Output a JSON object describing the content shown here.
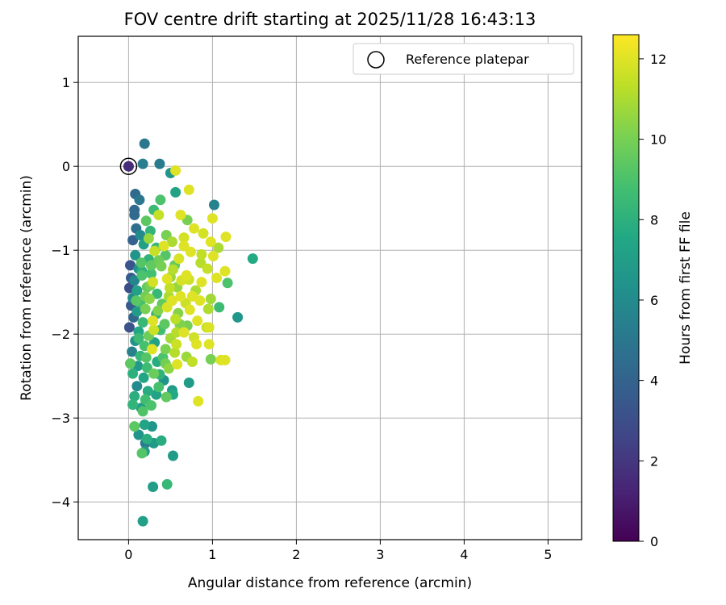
{
  "chart_data": {
    "type": "scatter",
    "title": "FOV centre drift starting at 2025/11/28 16:43:13",
    "xlabel": "Angular distance from reference (arcmin)",
    "ylabel": "Rotation from reference (arcmin)",
    "xlim": [
      -0.6,
      5.4
    ],
    "ylim": [
      -4.45,
      1.55
    ],
    "xticks": [
      0,
      1,
      2,
      3,
      4,
      5
    ],
    "xtick_labels": [
      "0",
      "1",
      "2",
      "3",
      "4",
      "5"
    ],
    "yticks": [
      1,
      0,
      -1,
      -2,
      -3,
      -4
    ],
    "ytick_labels": [
      "1",
      "0",
      "−1",
      "−2",
      "−3",
      "−4"
    ],
    "grid": true,
    "colorbar": {
      "label": "Hours from first FF file",
      "range": [
        0,
        12.6
      ],
      "ticks": [
        0,
        2,
        4,
        6,
        8,
        10,
        12
      ],
      "tick_labels": [
        "0",
        "2",
        "4",
        "6",
        "8",
        "10",
        "12"
      ],
      "colormap": "viridis"
    },
    "legend": {
      "position": "upper-right",
      "entries": [
        "Reference platepar"
      ]
    },
    "reference_point": {
      "x": 0,
      "y": 0,
      "hours": 1.6
    },
    "points": [
      [
        0.0,
        0.0,
        1.6
      ],
      [
        0.19,
        0.27,
        5.0
      ],
      [
        0.17,
        0.03,
        5.3
      ],
      [
        0.37,
        0.03,
        5.2
      ],
      [
        0.5,
        -0.08,
        6.6
      ],
      [
        0.56,
        -0.05,
        12.0
      ],
      [
        0.08,
        -0.33,
        4.4
      ],
      [
        0.13,
        -0.4,
        5.0
      ],
      [
        0.38,
        -0.4,
        9.0
      ],
      [
        0.56,
        -0.31,
        7.3
      ],
      [
        0.72,
        -0.28,
        12.0
      ],
      [
        1.02,
        -0.46,
        5.6
      ],
      [
        0.07,
        -0.52,
        4.3
      ],
      [
        0.07,
        -0.58,
        4.4
      ],
      [
        0.3,
        -0.52,
        8.5
      ],
      [
        0.21,
        -0.65,
        9.4
      ],
      [
        0.36,
        -0.58,
        11.5
      ],
      [
        0.62,
        -0.58,
        12.0
      ],
      [
        0.7,
        -0.64,
        10.0
      ],
      [
        1.0,
        -0.62,
        12.0
      ],
      [
        0.09,
        -0.74,
        4.6
      ],
      [
        0.14,
        -0.82,
        6.0
      ],
      [
        0.26,
        -0.77,
        8.2
      ],
      [
        0.45,
        -0.82,
        10.0
      ],
      [
        0.78,
        -0.74,
        12.0
      ],
      [
        0.89,
        -0.8,
        11.8
      ],
      [
        1.16,
        -0.84,
        12.0
      ],
      [
        0.05,
        -0.88,
        3.9
      ],
      [
        0.18,
        -0.93,
        7.1
      ],
      [
        0.33,
        -0.97,
        8.5
      ],
      [
        0.52,
        -0.9,
        11.0
      ],
      [
        0.66,
        -0.95,
        12.0
      ],
      [
        0.98,
        -0.9,
        12.0
      ],
      [
        1.07,
        -0.97,
        11.0
      ],
      [
        0.08,
        -1.06,
        6.5
      ],
      [
        0.24,
        -1.11,
        8.1
      ],
      [
        0.31,
        -1.01,
        11.5
      ],
      [
        0.44,
        -1.06,
        9.2
      ],
      [
        0.6,
        -1.1,
        11.9
      ],
      [
        0.74,
        -1.02,
        12.0
      ],
      [
        0.86,
        -1.15,
        11.2
      ],
      [
        1.01,
        -1.07,
        12.0
      ],
      [
        1.48,
        -1.1,
        7.6
      ],
      [
        0.02,
        -1.18,
        3.3
      ],
      [
        0.12,
        -1.22,
        6.3
      ],
      [
        0.27,
        -1.28,
        8.8
      ],
      [
        0.39,
        -1.19,
        10.0
      ],
      [
        0.53,
        -1.23,
        11.2
      ],
      [
        0.69,
        -1.3,
        12.0
      ],
      [
        0.94,
        -1.22,
        11.5
      ],
      [
        1.15,
        -1.25,
        12.0
      ],
      [
        0.03,
        -1.33,
        3.5
      ],
      [
        0.07,
        -1.36,
        5.7
      ],
      [
        0.16,
        -1.3,
        9.0
      ],
      [
        0.29,
        -1.38,
        11.8
      ],
      [
        0.46,
        -1.34,
        12.0
      ],
      [
        0.58,
        -1.44,
        10.6
      ],
      [
        0.72,
        -1.35,
        11.7
      ],
      [
        0.87,
        -1.38,
        12.0
      ],
      [
        1.05,
        -1.33,
        12.0
      ],
      [
        1.18,
        -1.39,
        9.0
      ],
      [
        0.01,
        -1.45,
        3.0
      ],
      [
        0.1,
        -1.48,
        7.2
      ],
      [
        0.22,
        -1.44,
        9.6
      ],
      [
        0.34,
        -1.52,
        8.4
      ],
      [
        0.49,
        -1.45,
        11.4
      ],
      [
        0.62,
        -1.55,
        12.0
      ],
      [
        0.8,
        -1.48,
        11.0
      ],
      [
        0.98,
        -1.58,
        10.8
      ],
      [
        0.05,
        -1.57,
        6.0
      ],
      [
        0.14,
        -1.62,
        8.8
      ],
      [
        0.25,
        -1.58,
        10.4
      ],
      [
        0.4,
        -1.64,
        9.5
      ],
      [
        0.52,
        -1.6,
        12.0
      ],
      [
        0.68,
        -1.63,
        11.6
      ],
      [
        0.85,
        -1.6,
        12.0
      ],
      [
        1.08,
        -1.68,
        8.6
      ],
      [
        0.03,
        -1.66,
        3.6
      ],
      [
        0.1,
        -1.73,
        6.9
      ],
      [
        0.2,
        -1.7,
        10.0
      ],
      [
        0.33,
        -1.76,
        8.1
      ],
      [
        0.46,
        -1.68,
        11.9
      ],
      [
        0.59,
        -1.75,
        10.3
      ],
      [
        0.73,
        -1.71,
        12.0
      ],
      [
        0.95,
        -1.7,
        11.1
      ],
      [
        1.3,
        -1.8,
        6.6
      ],
      [
        0.06,
        -1.8,
        4.2
      ],
      [
        0.17,
        -1.86,
        8.4
      ],
      [
        0.29,
        -1.84,
        12.0
      ],
      [
        0.43,
        -1.88,
        9.4
      ],
      [
        0.56,
        -1.82,
        11.3
      ],
      [
        0.7,
        -1.9,
        10.0
      ],
      [
        0.82,
        -1.84,
        12.0
      ],
      [
        0.93,
        -1.92,
        11.5
      ],
      [
        0.01,
        -1.92,
        3.2
      ],
      [
        0.12,
        -1.97,
        7.5
      ],
      [
        0.24,
        -2.02,
        9.8
      ],
      [
        0.38,
        -1.95,
        8.7
      ],
      [
        0.5,
        -2.05,
        10.9
      ],
      [
        0.66,
        -1.98,
        12.0
      ],
      [
        0.78,
        -2.04,
        11.7
      ],
      [
        0.96,
        -1.92,
        11.9
      ],
      [
        0.08,
        -2.08,
        6.4
      ],
      [
        0.19,
        -2.14,
        8.9
      ],
      [
        0.31,
        -2.1,
        7.2
      ],
      [
        0.44,
        -2.18,
        10.1
      ],
      [
        0.57,
        -2.12,
        11.6
      ],
      [
        0.81,
        -2.12,
        12.0
      ],
      [
        0.96,
        -2.12,
        12.0
      ],
      [
        0.04,
        -2.21,
        5.5
      ],
      [
        0.14,
        -2.26,
        8.3
      ],
      [
        0.28,
        -2.18,
        12.0
      ],
      [
        0.41,
        -2.28,
        9.0
      ],
      [
        0.55,
        -2.22,
        11.2
      ],
      [
        0.69,
        -2.27,
        10.7
      ],
      [
        0.98,
        -2.3,
        10.0
      ],
      [
        1.1,
        -2.31,
        11.9
      ],
      [
        1.15,
        -2.31,
        12.0
      ],
      [
        0.02,
        -2.35,
        9.4
      ],
      [
        0.11,
        -2.38,
        6.7
      ],
      [
        0.22,
        -2.4,
        8.6
      ],
      [
        0.34,
        -2.33,
        7.8
      ],
      [
        0.48,
        -2.41,
        10.5
      ],
      [
        0.58,
        -2.36,
        12.0
      ],
      [
        0.76,
        -2.33,
        11.4
      ],
      [
        0.05,
        -2.47,
        8.0
      ],
      [
        0.18,
        -2.52,
        7.4
      ],
      [
        0.3,
        -2.47,
        9.7
      ],
      [
        0.42,
        -2.55,
        6.5
      ],
      [
        0.72,
        -2.58,
        6.9
      ],
      [
        0.1,
        -2.62,
        5.9
      ],
      [
        0.23,
        -2.68,
        7.7
      ],
      [
        0.36,
        -2.63,
        8.9
      ],
      [
        0.52,
        -2.67,
        6.8
      ],
      [
        0.07,
        -2.74,
        7.9
      ],
      [
        0.2,
        -2.78,
        8.7
      ],
      [
        0.33,
        -2.72,
        7.3
      ],
      [
        0.45,
        -2.75,
        9.5
      ],
      [
        0.53,
        -2.72,
        7.6
      ],
      [
        0.83,
        -2.8,
        12.0
      ],
      [
        0.05,
        -2.84,
        8.2
      ],
      [
        0.15,
        -2.88,
        7.0
      ],
      [
        0.27,
        -2.85,
        9.0
      ],
      [
        0.17,
        -2.92,
        9.1
      ],
      [
        0.07,
        -3.1,
        9.4
      ],
      [
        0.19,
        -3.08,
        7.3
      ],
      [
        0.28,
        -3.1,
        6.6
      ],
      [
        0.12,
        -3.2,
        6.5
      ],
      [
        0.22,
        -3.25,
        7.9
      ],
      [
        0.3,
        -3.3,
        6.8
      ],
      [
        0.2,
        -3.3,
        5.2
      ],
      [
        0.39,
        -3.27,
        7.8
      ],
      [
        0.19,
        -3.4,
        6.8
      ],
      [
        0.16,
        -3.42,
        9.2
      ],
      [
        0.53,
        -3.45,
        6.9
      ],
      [
        0.29,
        -3.82,
        7.0
      ],
      [
        0.46,
        -3.79,
        8.4
      ],
      [
        0.17,
        -4.23,
        7.1
      ],
      [
        0.15,
        -1.15,
        9.2
      ],
      [
        0.26,
        -1.42,
        10.0
      ],
      [
        0.36,
        -1.12,
        9.8
      ],
      [
        0.48,
        -1.55,
        11.0
      ],
      [
        0.63,
        -1.36,
        11.8
      ],
      [
        0.42,
        -0.95,
        12.0
      ],
      [
        0.35,
        -1.72,
        10.2
      ],
      [
        0.2,
        -1.55,
        9.9
      ],
      [
        0.57,
        -1.98,
        11.2
      ],
      [
        0.44,
        -2.35,
        9.9
      ],
      [
        0.3,
        -1.95,
        11.6
      ],
      [
        0.16,
        -1.25,
        8.0
      ],
      [
        0.24,
        -0.86,
        10.6
      ],
      [
        0.55,
        -1.18,
        9.6
      ],
      [
        0.66,
        -0.85,
        11.8
      ],
      [
        0.87,
        -1.05,
        11.4
      ],
      [
        0.76,
        -1.55,
        12.0
      ],
      [
        0.12,
        -2.05,
        8.5
      ],
      [
        0.37,
        -2.48,
        8.1
      ],
      [
        0.61,
        -1.88,
        10.2
      ],
      [
        0.09,
        -1.6,
        9.3
      ],
      [
        0.27,
        -1.18,
        9.5
      ],
      [
        0.5,
        -1.32,
        10.6
      ],
      [
        0.21,
        -2.28,
        9.2
      ]
    ]
  }
}
